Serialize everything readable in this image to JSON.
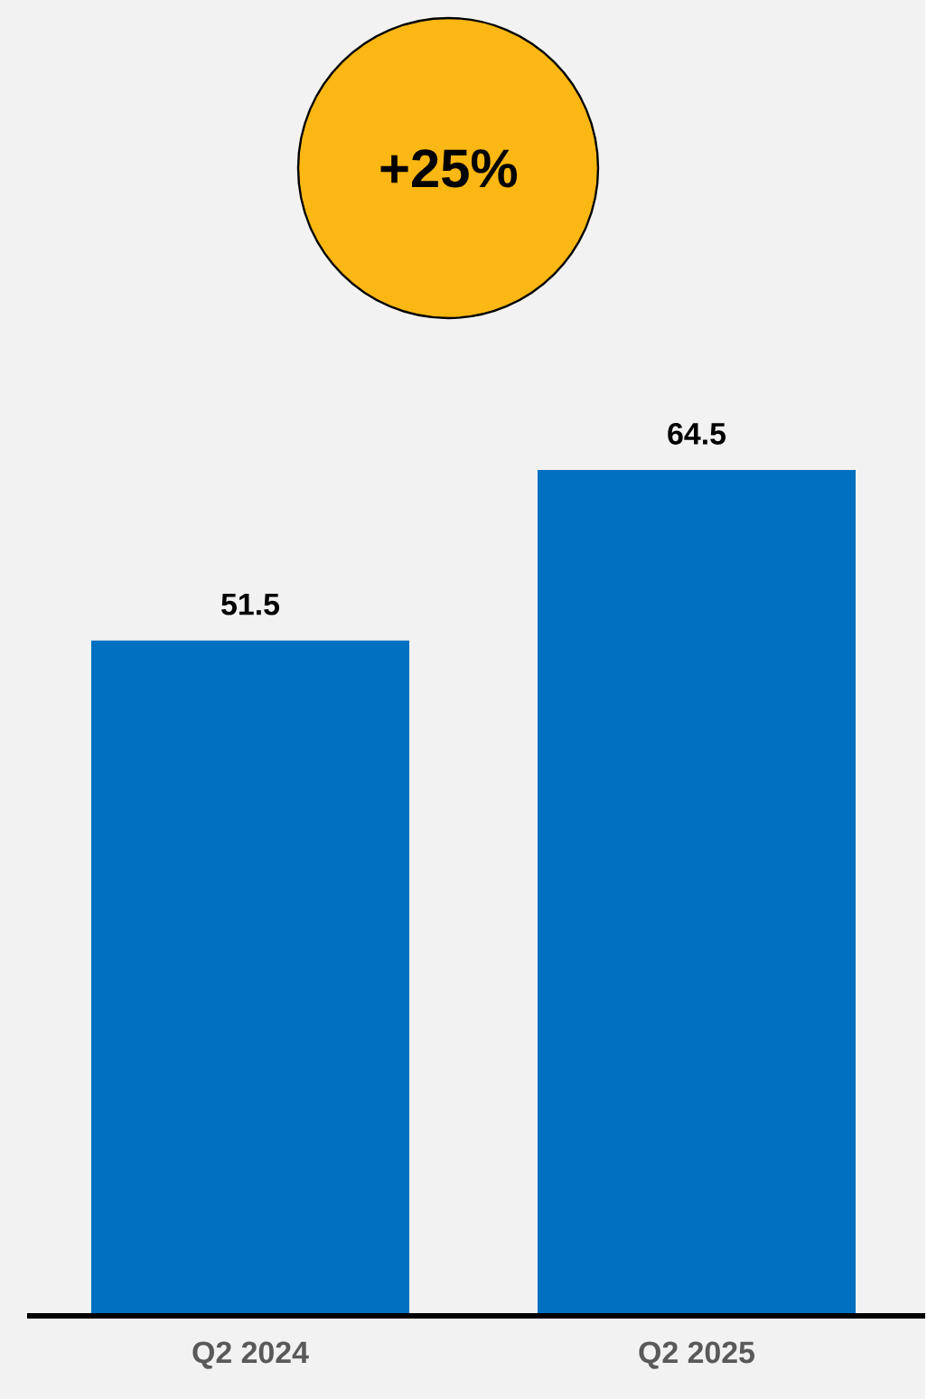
{
  "chart_data": {
    "type": "bar",
    "categories": [
      "Q2 2024",
      "Q2 2025"
    ],
    "values": [
      51.5,
      64.5
    ],
    "color": "#0070c0",
    "data_labels": true,
    "annotations": [
      "+25%"
    ]
  }
}
